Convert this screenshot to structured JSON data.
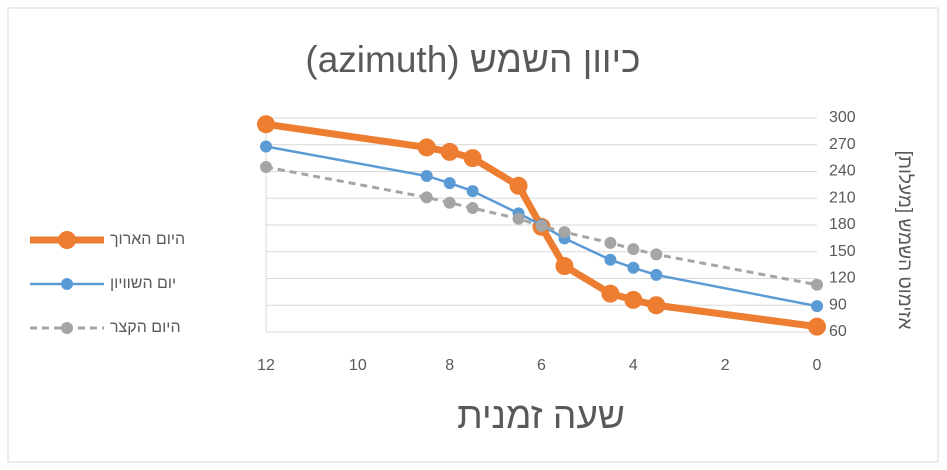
{
  "chart_data": {
    "type": "line",
    "title": "כיוון השמש (azimuth)",
    "x_label": "שעה זמנית",
    "y_label": "אזימוט השמש [מעלות]",
    "x": [
      12,
      8.5,
      8,
      7.5,
      6.5,
      6,
      5.5,
      4.5,
      4,
      3.5,
      0
    ],
    "xlim": [
      0,
      12
    ],
    "x_reversed": true,
    "xticks": [
      0,
      2,
      4,
      6,
      8,
      10,
      12
    ],
    "ylim": [
      60,
      300
    ],
    "yticks": [
      60,
      90,
      120,
      150,
      180,
      210,
      240,
      270,
      300
    ],
    "y_axis_side": "right",
    "grid": true,
    "legend": "left",
    "series": [
      {
        "name": "היום הארוך",
        "color": "#ed7d31",
        "values": [
          293,
          267,
          262,
          255,
          224,
          178,
          134,
          103,
          96,
          90,
          66
        ]
      },
      {
        "name": "יום השוויון",
        "color": "#5b9bd5",
        "values": [
          268,
          235,
          227,
          218,
          193,
          180,
          165,
          141,
          132,
          124,
          89
        ]
      },
      {
        "name": "היום הקצר",
        "color": "#a5a5a5",
        "values": [
          245,
          211,
          205,
          199,
          187,
          179,
          172,
          160,
          153,
          147,
          113
        ]
      }
    ]
  }
}
